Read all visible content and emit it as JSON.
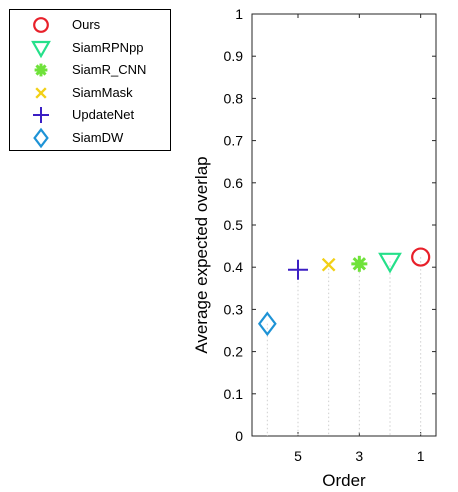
{
  "chart_data": {
    "type": "scatter",
    "xlabel": "Order",
    "ylabel": "Average expected overlap",
    "xlim": [
      6.5,
      0.5
    ],
    "ylim": [
      0,
      1
    ],
    "x_reversed": true,
    "xticks": [
      "5",
      "3",
      "1"
    ],
    "yticks": [
      "0",
      "0.1",
      "0.2",
      "0.3",
      "0.4",
      "0.5",
      "0.6",
      "0.7",
      "0.8",
      "0.9",
      "1"
    ],
    "legend_position": "top-left outside",
    "grid": false,
    "series": [
      {
        "name": "Ours",
        "x": 1,
        "y": 0.424,
        "marker": "circle",
        "color": "#e8202a"
      },
      {
        "name": "SiamRPNpp",
        "x": 2,
        "y": 0.414,
        "marker": "triangle-down",
        "color": "#25e08a"
      },
      {
        "name": "SiamR_CNN",
        "x": 3,
        "y": 0.408,
        "marker": "asterisk",
        "color": "#6fe23a"
      },
      {
        "name": "SiamMask",
        "x": 4,
        "y": 0.406,
        "marker": "x",
        "color": "#f2d016"
      },
      {
        "name": "UpdateNet",
        "x": 5,
        "y": 0.394,
        "marker": "plus",
        "color": "#3b1fc4"
      },
      {
        "name": "SiamDW",
        "x": 6,
        "y": 0.266,
        "marker": "diamond",
        "color": "#1e93d6"
      }
    ]
  }
}
